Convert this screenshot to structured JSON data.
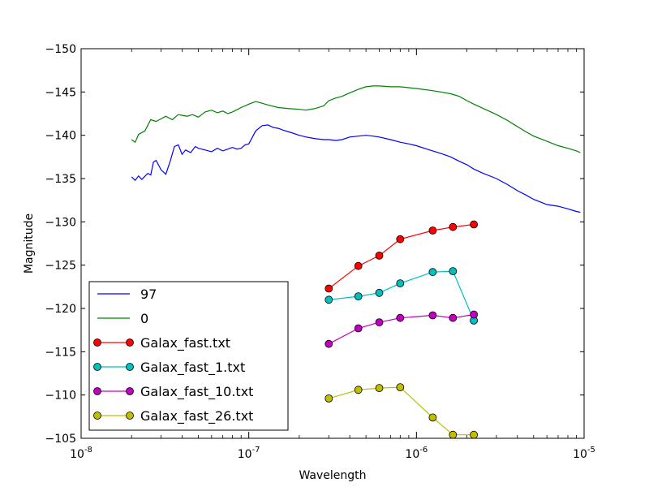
{
  "chart_data": {
    "type": "line",
    "title": "",
    "xlabel": "Wavelength",
    "ylabel": "Magnitude",
    "xscale": "log",
    "xlim": [
      1e-08,
      1e-05
    ],
    "ylim": [
      -105,
      -150
    ],
    "y_inverted": true,
    "grid": false,
    "legend_position": "lower-left",
    "x_ticks": [
      {
        "value": 1e-08,
        "base": "10",
        "exp": "-8"
      },
      {
        "value": 1e-07,
        "base": "10",
        "exp": "-7"
      },
      {
        "value": 1e-06,
        "base": "10",
        "exp": "-6"
      },
      {
        "value": 1e-05,
        "base": "10",
        "exp": "-5"
      }
    ],
    "y_ticks": [
      {
        "value": -150,
        "label": "−150"
      },
      {
        "value": -145,
        "label": "−145"
      },
      {
        "value": -140,
        "label": "−140"
      },
      {
        "value": -135,
        "label": "−135"
      },
      {
        "value": -130,
        "label": "−130"
      },
      {
        "value": -125,
        "label": "−125"
      },
      {
        "value": -120,
        "label": "−120"
      },
      {
        "value": -115,
        "label": "−115"
      },
      {
        "value": -110,
        "label": "−110"
      },
      {
        "value": -105,
        "label": "−105"
      }
    ],
    "series": [
      {
        "name": "97",
        "color": "#0000ff",
        "marker": false,
        "x": [
          2e-08,
          2.1e-08,
          2.2e-08,
          2.3e-08,
          2.5e-08,
          2.6e-08,
          2.7e-08,
          2.8e-08,
          3e-08,
          3.2e-08,
          3.4e-08,
          3.6e-08,
          3.8e-08,
          4e-08,
          4.2e-08,
          4.5e-08,
          4.8e-08,
          5e-08,
          5.5e-08,
          6e-08,
          6.5e-08,
          7e-08,
          7.5e-08,
          8e-08,
          8.5e-08,
          9e-08,
          9.5e-08,
          1e-07,
          1.1e-07,
          1.2e-07,
          1.3e-07,
          1.4e-07,
          1.5e-07,
          1.6e-07,
          1.8e-07,
          2e-07,
          2.2e-07,
          2.5e-07,
          2.8e-07,
          3e-07,
          3.3e-07,
          3.6e-07,
          4e-07,
          4.5e-07,
          5e-07,
          5.5e-07,
          6e-07,
          7e-07,
          8e-07,
          9e-07,
          1e-06,
          1.2e-06,
          1.4e-06,
          1.6e-06,
          1.8e-06,
          2e-06,
          2.2e-06,
          2.5e-06,
          3e-06,
          3.5e-06,
          4e-06,
          4.5e-06,
          5e-06,
          6e-06,
          7e-06,
          8e-06,
          9e-06,
          9.5e-06
        ],
        "y": [
          -135.2,
          -134.8,
          -135.3,
          -134.9,
          -135.6,
          -135.4,
          -136.9,
          -137.1,
          -136.0,
          -135.5,
          -137.0,
          -138.7,
          -138.9,
          -137.8,
          -138.3,
          -138.0,
          -138.7,
          -138.5,
          -138.3,
          -138.1,
          -138.5,
          -138.2,
          -138.4,
          -138.6,
          -138.4,
          -138.5,
          -138.9,
          -139.0,
          -140.5,
          -141.1,
          -141.2,
          -140.9,
          -140.8,
          -140.6,
          -140.3,
          -140.0,
          -139.8,
          -139.6,
          -139.5,
          -139.5,
          -139.4,
          -139.5,
          -139.8,
          -139.9,
          -140.0,
          -139.9,
          -139.8,
          -139.5,
          -139.2,
          -139.0,
          -138.8,
          -138.3,
          -137.9,
          -137.5,
          -137.0,
          -136.6,
          -136.1,
          -135.6,
          -135.0,
          -134.3,
          -133.6,
          -133.1,
          -132.6,
          -132.0,
          -131.8,
          -131.5,
          -131.2,
          -131.1
        ]
      },
      {
        "name": "0",
        "color": "#008000",
        "marker": false,
        "x": [
          2e-08,
          2.1e-08,
          2.2e-08,
          2.4e-08,
          2.6e-08,
          2.8e-08,
          3e-08,
          3.2e-08,
          3.5e-08,
          3.8e-08,
          4e-08,
          4.3e-08,
          4.6e-08,
          5e-08,
          5.5e-08,
          6e-08,
          6.5e-08,
          7e-08,
          7.5e-08,
          8e-08,
          9e-08,
          1e-07,
          1.1e-07,
          1.2e-07,
          1.3e-07,
          1.5e-07,
          1.7e-07,
          2e-07,
          2.2e-07,
          2.5e-07,
          2.8e-07,
          3e-07,
          3.3e-07,
          3.6e-07,
          4e-07,
          4.5e-07,
          5e-07,
          5.5e-07,
          6e-07,
          7e-07,
          8e-07,
          9e-07,
          1e-06,
          1.2e-06,
          1.4e-06,
          1.6e-06,
          1.8e-06,
          2e-06,
          2.2e-06,
          2.5e-06,
          3e-06,
          3.5e-06,
          4e-06,
          4.5e-06,
          5e-06,
          6e-06,
          7e-06,
          8e-06,
          9e-06,
          9.5e-06
        ],
        "y": [
          -139.5,
          -139.2,
          -140.1,
          -140.5,
          -141.8,
          -141.6,
          -141.9,
          -142.2,
          -141.8,
          -142.4,
          -142.3,
          -142.2,
          -142.4,
          -142.1,
          -142.7,
          -142.9,
          -142.6,
          -142.8,
          -142.5,
          -142.7,
          -143.2,
          -143.6,
          -143.9,
          -143.7,
          -143.5,
          -143.2,
          -143.1,
          -143.0,
          -142.9,
          -143.1,
          -143.4,
          -144.0,
          -144.3,
          -144.5,
          -144.9,
          -145.3,
          -145.6,
          -145.7,
          -145.7,
          -145.6,
          -145.6,
          -145.5,
          -145.4,
          -145.2,
          -145.0,
          -144.8,
          -144.5,
          -144.0,
          -143.6,
          -143.1,
          -142.4,
          -141.7,
          -141.0,
          -140.4,
          -139.9,
          -139.3,
          -138.8,
          -138.5,
          -138.2,
          -138.0
        ]
      },
      {
        "name": "Galax_fast.txt",
        "color": "#ff0000",
        "marker": true,
        "x": [
          3e-07,
          4.5e-07,
          6e-07,
          8e-07,
          1.25e-06,
          1.65e-06,
          2.2e-06
        ],
        "y": [
          -122.3,
          -124.9,
          -126.1,
          -128.0,
          -129.0,
          -129.4,
          -129.7
        ]
      },
      {
        "name": "Galax_fast_1.txt",
        "color": "#00bfbf",
        "marker": true,
        "x": [
          3e-07,
          4.5e-07,
          6e-07,
          8e-07,
          1.25e-06,
          1.65e-06,
          2.2e-06
        ],
        "y": [
          -121.0,
          -121.4,
          -121.8,
          -122.9,
          -124.2,
          -124.3,
          -118.6
        ]
      },
      {
        "name": "Galax_fast_10.txt",
        "color": "#bf00bf",
        "marker": true,
        "x": [
          3e-07,
          4.5e-07,
          6e-07,
          8e-07,
          1.25e-06,
          1.65e-06,
          2.2e-06
        ],
        "y": [
          -115.9,
          -117.7,
          -118.4,
          -118.9,
          -119.2,
          -118.9,
          -119.3
        ]
      },
      {
        "name": "Galax_fast_26.txt",
        "color": "#bfbf00",
        "marker": true,
        "x": [
          3e-07,
          4.5e-07,
          6e-07,
          8e-07,
          1.25e-06,
          1.65e-06,
          2.2e-06
        ],
        "y": [
          -109.6,
          -110.6,
          -110.8,
          -110.9,
          -107.4,
          -105.4,
          -105.4
        ]
      }
    ]
  }
}
